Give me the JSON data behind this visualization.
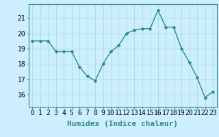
{
  "x": [
    0,
    1,
    2,
    3,
    4,
    5,
    6,
    7,
    8,
    9,
    10,
    11,
    12,
    13,
    14,
    15,
    16,
    17,
    18,
    19,
    20,
    21,
    22,
    23
  ],
  "y": [
    19.5,
    19.5,
    19.5,
    18.8,
    18.8,
    18.8,
    17.8,
    17.2,
    16.9,
    18.0,
    18.8,
    19.2,
    20.0,
    20.2,
    20.3,
    20.3,
    21.5,
    20.4,
    20.4,
    19.0,
    18.1,
    17.1,
    15.8,
    16.2
  ],
  "line_color": "#2d8b78",
  "marker": "D",
  "markersize": 2.5,
  "linewidth": 1.0,
  "bg_color": "#cceeff",
  "grid_color": "#aadddd",
  "xlabel": "Humidex (Indice chaleur)",
  "xlabel_fontsize": 8,
  "yticks": [
    16,
    17,
    18,
    19,
    20,
    21
  ],
  "ylim": [
    15.2,
    21.9
  ],
  "xlim": [
    -0.5,
    23.5
  ],
  "tick_fontsize": 7,
  "label_color": "#2d8b78"
}
